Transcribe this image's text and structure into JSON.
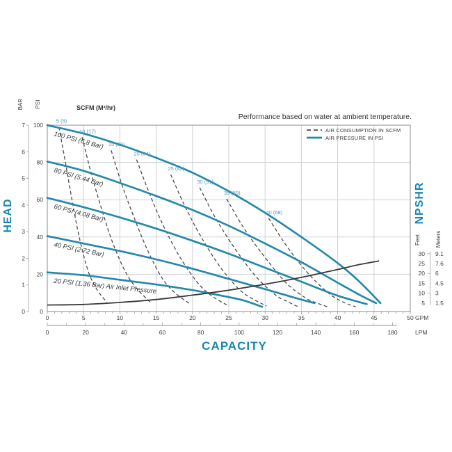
{
  "colors": {
    "curve_blue": "#2589ab",
    "label_blue": "#4e9cbe",
    "axis_title_blue": "#1887b0",
    "dashed_gray": "#4a4a4a",
    "npshr_black": "#383838",
    "grid": "#cdd2d6",
    "frame": "#9aa0a4",
    "tick": "#8c9196",
    "text": "#3f3f3f"
  },
  "chart_data": {
    "type": "line",
    "title": "Performance based on water at ambient temperature.",
    "scfm_header": "SCFM (M³/hr)",
    "legend": {
      "air_consumption_label": "AIR CONSUMPTION IN SCFM",
      "air_pressure_label": "AIR PRESSURE IN PSI",
      "position": "top-right"
    },
    "x_axis": {
      "label": "CAPACITY",
      "primary_unit": "GPM",
      "primary_ticks": [
        0,
        5,
        10,
        15,
        20,
        25,
        30,
        35,
        40,
        45,
        50
      ],
      "primary_range": [
        0,
        50
      ],
      "secondary_unit": "LPM",
      "secondary_ticks": [
        0,
        20,
        40,
        60,
        80,
        100,
        120,
        140,
        160,
        180
      ],
      "secondary_range": [
        0,
        180
      ],
      "grid": true
    },
    "y_axis_left": {
      "label": "HEAD",
      "units": [
        "BAR",
        "PSI"
      ],
      "bar_ticks": [
        7,
        6,
        5,
        4,
        3,
        2,
        1,
        0
      ],
      "bar_range": [
        0,
        7
      ],
      "psi_ticks": [
        100,
        80,
        60,
        40,
        20,
        0
      ],
      "psi_range": [
        0,
        100
      ],
      "grid": true
    },
    "y_axis_right": {
      "label": "NPSHR",
      "feet_label": "Feet",
      "meters_label": "Meters",
      "feet_ticks": [
        30,
        25,
        20,
        15,
        10,
        5
      ],
      "meters_ticks": [
        "9.1",
        "7.6",
        "6",
        "4.5",
        "3",
        "1.5"
      ]
    },
    "air_pressure_series": [
      {
        "label": "100 PSI (6.8 Bar)",
        "points_gpm_psi": [
          [
            0,
            100
          ],
          [
            5,
            95.5
          ],
          [
            10,
            89.5
          ],
          [
            15,
            82.5
          ],
          [
            20,
            74.5
          ],
          [
            25,
            64.5
          ],
          [
            30,
            53
          ],
          [
            35,
            40
          ],
          [
            40,
            26
          ],
          [
            43,
            16
          ],
          [
            45.9,
            4.5
          ]
        ]
      },
      {
        "label": "80 PSI (5.44 Bar)",
        "points_gpm_psi": [
          [
            0,
            80.5
          ],
          [
            5,
            75.5
          ],
          [
            10,
            69
          ],
          [
            15,
            62
          ],
          [
            20,
            54.5
          ],
          [
            25,
            46
          ],
          [
            30,
            36.5
          ],
          [
            35,
            26.5
          ],
          [
            40,
            15.5
          ],
          [
            43,
            9
          ],
          [
            45.3,
            4.5
          ]
        ]
      },
      {
        "label": "60 PSI (4.08 Bar)",
        "points_gpm_psi": [
          [
            0,
            61
          ],
          [
            5,
            56
          ],
          [
            10,
            50.5
          ],
          [
            15,
            44.5
          ],
          [
            20,
            38
          ],
          [
            25,
            31
          ],
          [
            30,
            23.5
          ],
          [
            35,
            16
          ],
          [
            40,
            8.5
          ],
          [
            44,
            4
          ]
        ]
      },
      {
        "label": "40 PSI (2.72 Bar)",
        "points_gpm_psi": [
          [
            0,
            40.5
          ],
          [
            5,
            36.5
          ],
          [
            10,
            32.5
          ],
          [
            15,
            28
          ],
          [
            20,
            23
          ],
          [
            25,
            17.5
          ],
          [
            30,
            12
          ],
          [
            34,
            7.5
          ],
          [
            36.8,
            4.5
          ]
        ]
      },
      {
        "label": "20 PSI (1.36 Bar) Air Inlet Pressure",
        "points_gpm_psi": [
          [
            0,
            21
          ],
          [
            5,
            19.5
          ],
          [
            10,
            17
          ],
          [
            15,
            14.5
          ],
          [
            20,
            11.5
          ],
          [
            24,
            8.5
          ],
          [
            27,
            6
          ],
          [
            29.6,
            2.5
          ]
        ]
      }
    ],
    "air_consumption_series": [
      {
        "label": "5 (8)",
        "points_gpm_psi": [
          [
            1.6,
            99
          ],
          [
            2.5,
            80
          ],
          [
            3.4,
            60
          ],
          [
            4.4,
            40
          ],
          [
            5.6,
            22
          ],
          [
            6.8,
            12
          ],
          [
            8.2,
            5
          ]
        ]
      },
      {
        "label": "10 (17)",
        "points_gpm_psi": [
          [
            4.8,
            93.5
          ],
          [
            6,
            75
          ],
          [
            7.4,
            56
          ],
          [
            9,
            37
          ],
          [
            10.8,
            21
          ],
          [
            12.4,
            12
          ],
          [
            14.2,
            5
          ]
        ]
      },
      {
        "label": "15 (25)",
        "points_gpm_psi": [
          [
            8.8,
            86.5
          ],
          [
            10.2,
            69
          ],
          [
            11.9,
            51
          ],
          [
            13.8,
            33
          ],
          [
            15.8,
            18
          ],
          [
            17.6,
            10
          ],
          [
            19.7,
            4
          ]
        ]
      },
      {
        "label": "20 (34)",
        "points_gpm_psi": [
          [
            12.3,
            81.5
          ],
          [
            14,
            64
          ],
          [
            16,
            46
          ],
          [
            18.3,
            29
          ],
          [
            20.8,
            15
          ],
          [
            22.8,
            8
          ],
          [
            25,
            3
          ]
        ]
      },
      {
        "label": "25 (42)",
        "points_gpm_psi": [
          [
            17,
            73.5
          ],
          [
            18.9,
            57
          ],
          [
            21.2,
            40
          ],
          [
            23.8,
            24
          ],
          [
            26.4,
            12
          ],
          [
            28.2,
            7
          ],
          [
            30.2,
            3
          ]
        ]
      },
      {
        "label": "30 (51)",
        "points_gpm_psi": [
          [
            21,
            66.5
          ],
          [
            23.2,
            50
          ],
          [
            25.8,
            34
          ],
          [
            28.7,
            19
          ],
          [
            31.4,
            9
          ],
          [
            33,
            5.5
          ],
          [
            34.6,
            2.5
          ]
        ]
      },
      {
        "label": "35 (59)",
        "points_gpm_psi": [
          [
            24.7,
            60.5
          ],
          [
            27.2,
            44
          ],
          [
            30,
            29
          ],
          [
            33,
            15
          ],
          [
            35.7,
            7
          ],
          [
            37.2,
            4.5
          ],
          [
            38.6,
            2.5
          ]
        ]
      },
      {
        "label": "40 (68)",
        "points_gpm_psi": [
          [
            30.5,
            50
          ],
          [
            33,
            35
          ],
          [
            35.8,
            21
          ],
          [
            38.7,
            10
          ],
          [
            40.8,
            5
          ],
          [
            42.5,
            2.5
          ]
        ]
      }
    ],
    "npshr_series": {
      "name": "NPSHR",
      "points_gpm_feet": [
        [
          0,
          4
        ],
        [
          5,
          4.3
        ],
        [
          10,
          5.3
        ],
        [
          15,
          6.8
        ],
        [
          20,
          9
        ],
        [
          25,
          11.5
        ],
        [
          30,
          14.5
        ],
        [
          35,
          18
        ],
        [
          40,
          22
        ],
        [
          43,
          24.5
        ],
        [
          45.7,
          26.3
        ]
      ]
    }
  }
}
